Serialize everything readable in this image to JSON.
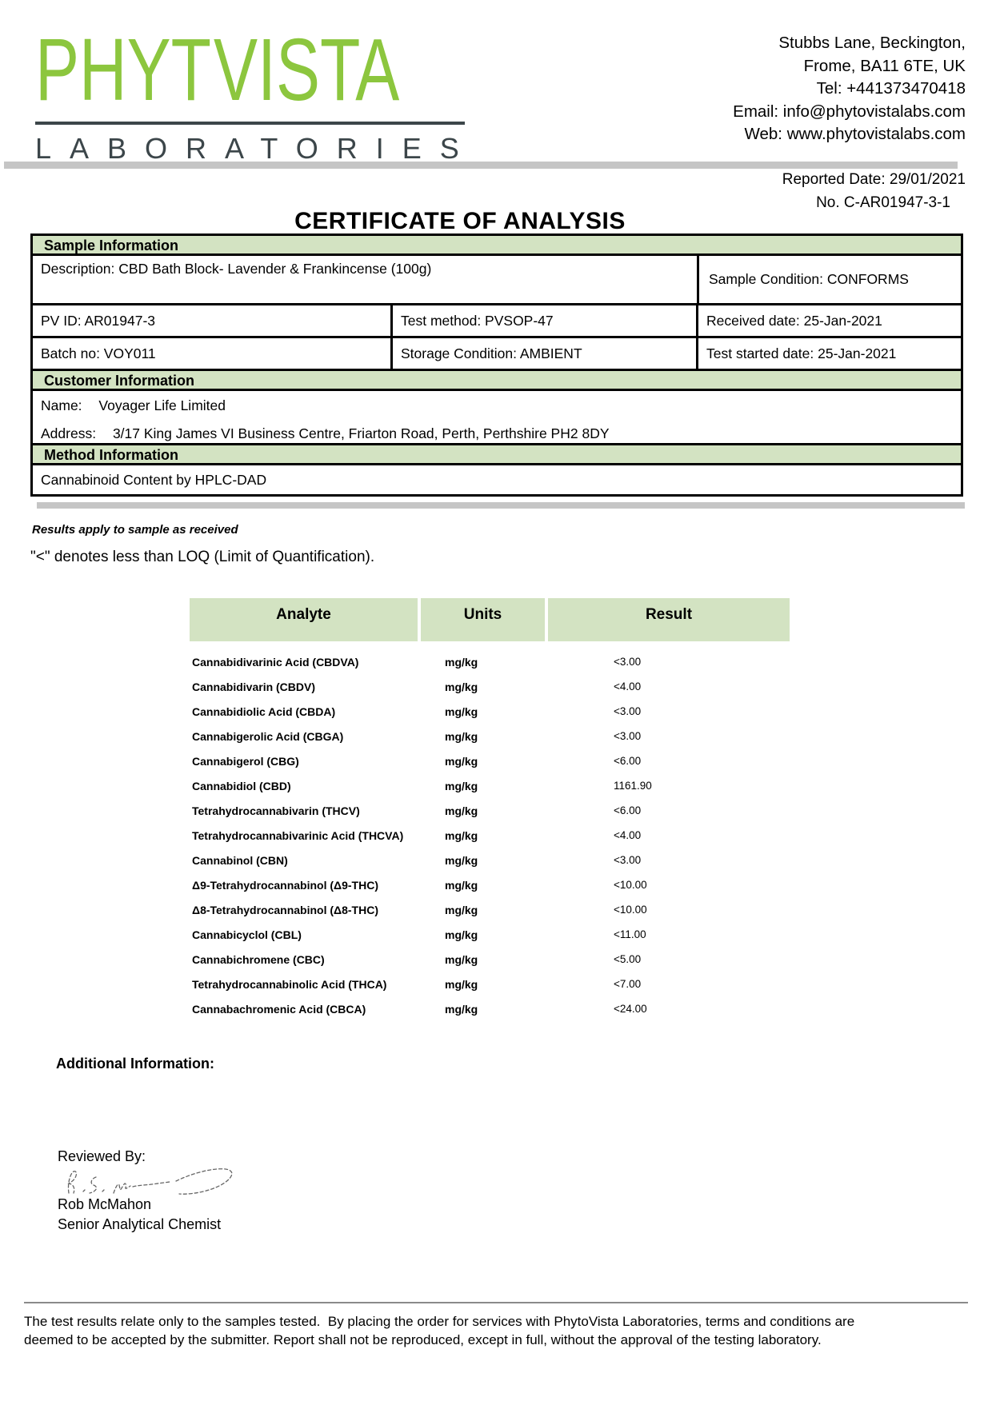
{
  "logo": {
    "word_part1": "PHYT",
    "word_part2": "VISTA",
    "subtitle": "LABORATORIES",
    "brand_green": "#8cc63e",
    "brand_dark": "#3c464a"
  },
  "contact": {
    "lines": [
      "Stubbs Lane, Beckington,",
      "Frome, BA11 6TE, UK",
      "Tel: +441373470418",
      "Email: info@phytovistalabs.com",
      "Web: www.phytovistalabs.com"
    ]
  },
  "report": {
    "title": "CERTIFICATE OF ANALYSIS",
    "reported_date": "Reported Date: 29/01/2021",
    "number": "No. C-AR01947-3-1"
  },
  "sample_information": {
    "header": "Sample Information",
    "description": "Description: CBD Bath Block- Lavender & Frankincense (100g)",
    "sample_condition": "Sample Condition: CONFORMS",
    "pv_id": "PV ID: AR01947-3",
    "test_method": "Test method: PVSOP-47",
    "received_date": "Received date: 25-Jan-2021",
    "batch_no": "Batch no: VOY011",
    "storage_condition": "Storage Condition: AMBIENT",
    "test_started_date": "Test started date: 25-Jan-2021"
  },
  "customer_information": {
    "header": "Customer Information",
    "name_label": "Name:",
    "name_value": "Voyager Life Limited",
    "address_label": "Address:",
    "address_value": "3/17 King James VI Business Centre, Friarton Road, Perth, Perthshire PH2 8DY"
  },
  "method_information": {
    "header": "Method Information",
    "method": "Cannabinoid Content by HPLC-DAD"
  },
  "notes": {
    "results_apply": "Results apply to sample as received",
    "loq_note": "\"<\" denotes less than LOQ (Limit of Quantification)."
  },
  "results_table": {
    "columns": [
      "Analyte",
      "Units",
      "Result"
    ],
    "header_green": "#d3e3c2",
    "rows": [
      {
        "analyte": "Cannabidivarinic Acid (CBDVA)",
        "units": "mg/kg",
        "result": "<3.00"
      },
      {
        "analyte": "Cannabidivarin (CBDV)",
        "units": "mg/kg",
        "result": "<4.00"
      },
      {
        "analyte": "Cannabidiolic Acid (CBDA)",
        "units": "mg/kg",
        "result": "<3.00"
      },
      {
        "analyte": "Cannabigerolic Acid (CBGA)",
        "units": "mg/kg",
        "result": "<3.00"
      },
      {
        "analyte": "Cannabigerol (CBG)",
        "units": "mg/kg",
        "result": "<6.00"
      },
      {
        "analyte": "Cannabidiol (CBD)",
        "units": "mg/kg",
        "result": "1161.90"
      },
      {
        "analyte": "Tetrahydrocannabivarin (THCV)",
        "units": "mg/kg",
        "result": "<6.00"
      },
      {
        "analyte": "Tetrahydrocannabivarinic Acid (THCVA)",
        "units": "mg/kg",
        "result": "<4.00"
      },
      {
        "analyte": "Cannabinol (CBN)",
        "units": "mg/kg",
        "result": "<3.00"
      },
      {
        "analyte": "Δ9-Tetrahydrocannabinol (Δ9-THC)",
        "units": "mg/kg",
        "result": "<10.00"
      },
      {
        "analyte": "Δ8-Tetrahydrocannabinol (Δ8-THC)",
        "units": "mg/kg",
        "result": "<10.00"
      },
      {
        "analyte": "Cannabicyclol (CBL)",
        "units": "mg/kg",
        "result": "<11.00"
      },
      {
        "analyte": "Cannabichromene (CBC)",
        "units": "mg/kg",
        "result": "<5.00"
      },
      {
        "analyte": "Tetrahydrocannabinolic Acid (THCA)",
        "units": "mg/kg",
        "result": "<7.00"
      },
      {
        "analyte": "Cannabachromenic Acid (CBCA)",
        "units": "mg/kg",
        "result": "<24.00"
      }
    ]
  },
  "additional_information_label": "Additional Information:",
  "signature": {
    "reviewed_by_label": "Reviewed By:",
    "name": "Rob McMahon",
    "title": "Senior Analytical Chemist"
  },
  "footer": {
    "line1": "The test results relate only to the samples tested.  By placing the order for services with PhytoVista Laboratories, terms and conditions are",
    "line2": "deemed to be accepted by the submitter. Report shall not be reproduced, except in full, without the approval of the testing laboratory."
  }
}
